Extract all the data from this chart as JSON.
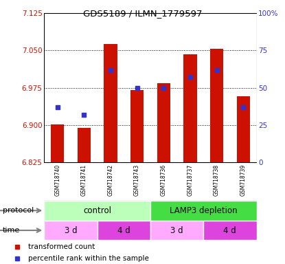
{
  "title": "GDS5189 / ILMN_1779597",
  "samples": [
    "GSM718740",
    "GSM718741",
    "GSM718742",
    "GSM718743",
    "GSM718736",
    "GSM718737",
    "GSM718738",
    "GSM718739"
  ],
  "bar_top": [
    6.901,
    6.895,
    7.063,
    6.97,
    6.984,
    7.042,
    7.054,
    6.958
  ],
  "bar_bottom": 6.825,
  "percentile_values": [
    37,
    32,
    62,
    50,
    50,
    57,
    62,
    37
  ],
  "ylim_left": [
    6.825,
    7.125
  ],
  "ylim_right": [
    0,
    100
  ],
  "yticks_left": [
    6.825,
    6.9,
    6.975,
    7.05,
    7.125
  ],
  "yticks_right": [
    0,
    25,
    50,
    75,
    100
  ],
  "bar_color": "#cc1100",
  "blue_color": "#3333cc",
  "protocol_groups": [
    {
      "label": "control",
      "start": 0,
      "end": 3,
      "color": "#bbffbb"
    },
    {
      "label": "LAMP3 depletion",
      "start": 4,
      "end": 7,
      "color": "#44dd44"
    }
  ],
  "time_groups": [
    {
      "label": "3 d",
      "start": 0,
      "end": 1,
      "color": "#ffaaff"
    },
    {
      "label": "4 d",
      "start": 2,
      "end": 3,
      "color": "#dd44dd"
    },
    {
      "label": "3 d",
      "start": 4,
      "end": 5,
      "color": "#ffaaff"
    },
    {
      "label": "4 d",
      "start": 6,
      "end": 7,
      "color": "#dd44dd"
    }
  ],
  "legend_bar_label": "transformed count",
  "legend_square_label": "percentile rank within the sample",
  "tick_area_color": "#bbbbbb",
  "bar_width": 0.5
}
